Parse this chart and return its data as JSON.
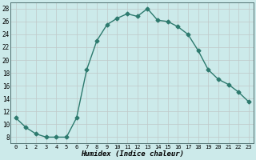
{
  "xlabel": "Humidex (Indice chaleur)",
  "x_values": [
    0,
    1,
    2,
    3,
    4,
    5,
    6,
    7,
    8,
    9,
    10,
    11,
    12,
    13,
    14,
    15,
    16,
    17,
    18,
    19,
    20,
    21,
    22,
    23
  ],
  "y_values": [
    11,
    9.5,
    8.5,
    8,
    8,
    8,
    11,
    18.5,
    23,
    25.5,
    26.5,
    27.2,
    26.8,
    28,
    26.2,
    26,
    25.2,
    24,
    21.5,
    18.5,
    17,
    16.2,
    15,
    13.5
  ],
  "line_color": "#2d7a6e",
  "bg_color": "#cceaea",
  "grid_color_minor": "#b8dada",
  "grid_color_major": "#c0c8c8",
  "ylim": [
    7,
    29
  ],
  "xlim": [
    -0.5,
    23.5
  ],
  "yticks": [
    8,
    10,
    12,
    14,
    16,
    18,
    20,
    22,
    24,
    26,
    28
  ],
  "xticks": [
    0,
    1,
    2,
    3,
    4,
    5,
    6,
    7,
    8,
    9,
    10,
    11,
    12,
    13,
    14,
    15,
    16,
    17,
    18,
    19,
    20,
    21,
    22,
    23
  ],
  "xtick_labels": [
    "0",
    "1",
    "2",
    "3",
    "4",
    "5",
    "6",
    "7",
    "8",
    "9",
    "10",
    "11",
    "12",
    "13",
    "14",
    "15",
    "16",
    "17",
    "18",
    "19",
    "20",
    "21",
    "22",
    "23"
  ],
  "marker": "D",
  "markersize": 2.5,
  "linewidth": 1.0
}
